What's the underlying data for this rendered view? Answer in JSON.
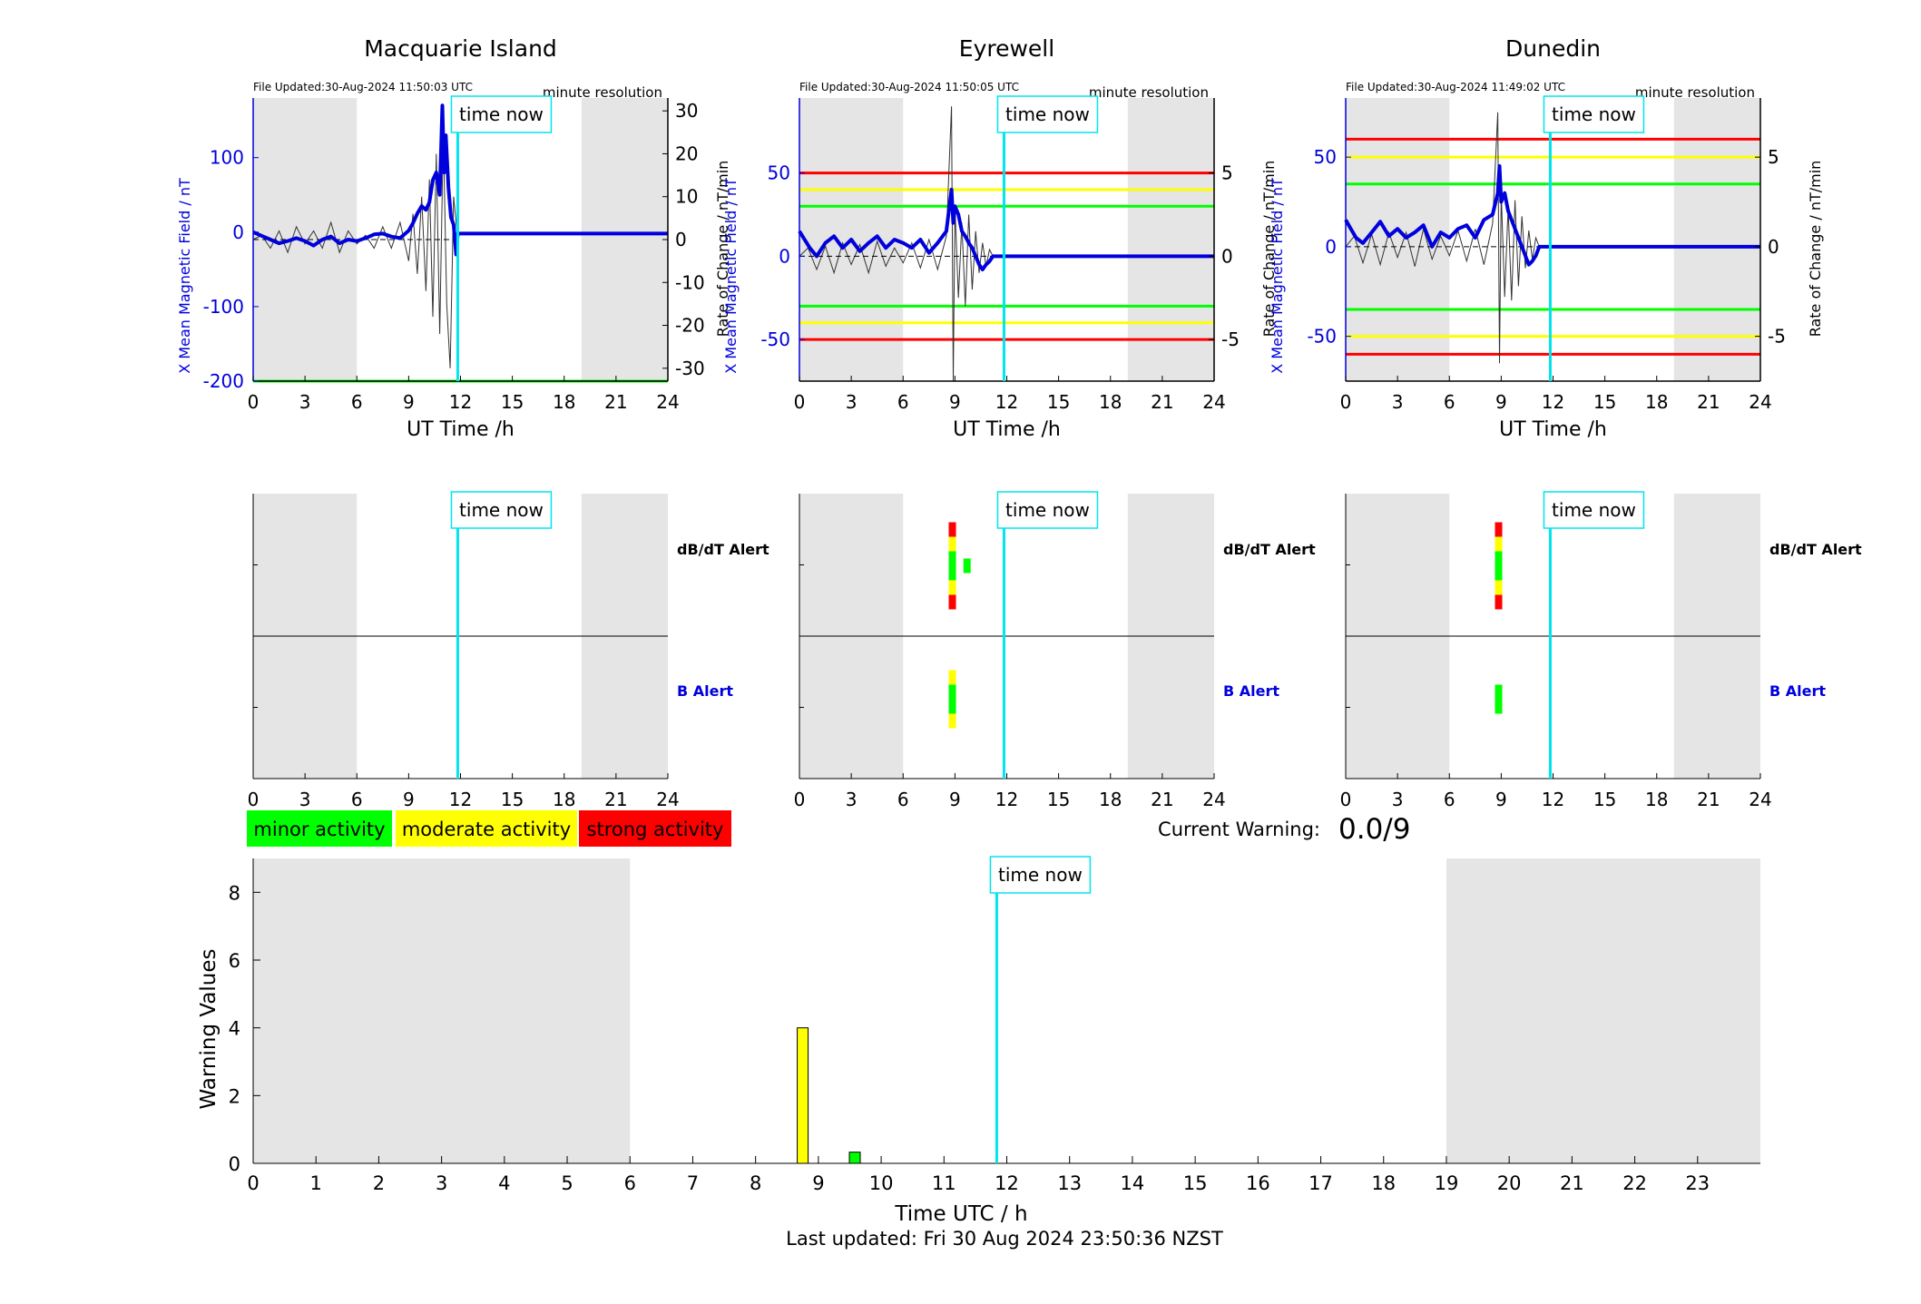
{
  "colors": {
    "x_series": "#0000dd",
    "rate_series": "#333333",
    "minor": "#00ff00",
    "moderate": "#ffff00",
    "strong": "#ff0000",
    "now_line": "#00e5ee",
    "night_shade": "#e5e5e5"
  },
  "time_now_label": "time now",
  "time_now_hours": 11.84,
  "night_hours": [
    [
      0,
      6
    ],
    [
      19,
      24
    ]
  ],
  "stations": [
    {
      "title": "Macquarie Island",
      "file_updated": "File Updated:30-Aug-2024 11:50:03 UTC",
      "resolution": "minute resolution",
      "now_hours": 11.84,
      "ylabel_left": "X Mean Magnetic Field / nT",
      "ylabel_right": "Rate of Change / nT/min",
      "ylim_left": [
        -200,
        180
      ],
      "ylim_right": [
        -33,
        33
      ],
      "yticks_left": [
        "100",
        "0",
        "-100",
        "-200"
      ],
      "yticks_right": [
        "30",
        "20",
        "10",
        "0",
        "-10",
        "-20",
        "-30"
      ],
      "threshold_lines": [
        {
          "value": -200,
          "level": "minor"
        }
      ],
      "x_series": {
        "hours": [
          0,
          0.5,
          1,
          1.5,
          2,
          2.5,
          3,
          3.5,
          4,
          4.5,
          5,
          5.5,
          6,
          6.5,
          7,
          7.5,
          8,
          8.5,
          9,
          9.25,
          9.5,
          9.75,
          10,
          10.2,
          10.4,
          10.6,
          10.8,
          10.95,
          11.05,
          11.15,
          11.3,
          11.45,
          11.6,
          11.75,
          11.84,
          12,
          14,
          16,
          18,
          20,
          22,
          24
        ],
        "values": [
          0,
          -5,
          -10,
          -15,
          -12,
          -8,
          -12,
          -18,
          -10,
          -6,
          -15,
          -10,
          -12,
          -8,
          -3,
          -2,
          -6,
          -8,
          2,
          12,
          25,
          35,
          30,
          40,
          70,
          80,
          50,
          170,
          80,
          130,
          60,
          20,
          10,
          -30,
          -2,
          -2,
          -2,
          -2,
          -2,
          -2,
          -2,
          -2
        ]
      },
      "rate_series": {
        "hours": [
          0,
          0.5,
          1,
          1.5,
          2,
          2.5,
          3,
          3.5,
          4,
          4.5,
          5,
          5.5,
          6,
          6.5,
          7,
          7.5,
          8,
          8.5,
          9,
          9.25,
          9.5,
          9.75,
          10,
          10.2,
          10.4,
          10.6,
          10.8,
          11,
          11.2,
          11.4,
          11.6,
          11.84
        ],
        "values": [
          0,
          1,
          -2,
          2,
          -3,
          3,
          -1,
          2,
          -2,
          4,
          -3,
          2,
          -1,
          1,
          -2,
          3,
          -2,
          4,
          -5,
          6,
          -8,
          10,
          -12,
          14,
          -18,
          20,
          -22,
          25,
          -15,
          -30,
          10,
          0
        ]
      },
      "alerts": {
        "dbdt_label": "dB/dT Alert",
        "b_label": "B Alert",
        "dbdt": [],
        "b": []
      }
    },
    {
      "title": "Eyrewell",
      "file_updated": "File Updated:30-Aug-2024 11:50:05 UTC",
      "resolution": "minute resolution",
      "now_hours": 11.84,
      "ylabel_left": "X Mean Magnetic Field / nT",
      "ylabel_right": "Rate of Change / nT/min",
      "ylim_left": [
        -75,
        95
      ],
      "ylim_right": [
        -7.5,
        9.5
      ],
      "yticks_left": [
        "50",
        "0",
        "-50"
      ],
      "yticks_right": [
        "5",
        "0",
        "-5"
      ],
      "threshold_lines": [
        {
          "value": 50,
          "level": "strong"
        },
        {
          "value": 40,
          "level": "moderate"
        },
        {
          "value": 30,
          "level": "minor"
        },
        {
          "value": -30,
          "level": "minor"
        },
        {
          "value": -40,
          "level": "moderate"
        },
        {
          "value": -50,
          "level": "strong"
        }
      ],
      "x_series": {
        "hours": [
          0,
          0.3,
          0.6,
          1,
          1.5,
          2,
          2.5,
          3,
          3.5,
          4,
          4.5,
          5,
          5.5,
          6,
          6.5,
          7,
          7.5,
          8,
          8.5,
          8.8,
          8.9,
          9,
          9.2,
          9.4,
          9.6,
          9.8,
          10,
          10.2,
          10.4,
          10.6,
          10.8,
          11,
          11.2,
          11.5,
          11.84,
          12,
          14,
          16,
          18,
          20,
          22,
          24
        ],
        "values": [
          15,
          10,
          5,
          0,
          8,
          12,
          5,
          10,
          3,
          8,
          12,
          5,
          10,
          8,
          5,
          10,
          2,
          8,
          15,
          40,
          20,
          30,
          25,
          15,
          12,
          8,
          5,
          0,
          -5,
          -8,
          -5,
          -3,
          0,
          0,
          0,
          0,
          0,
          0,
          0,
          0,
          0,
          0
        ]
      },
      "rate_series": {
        "hours": [
          0,
          0.5,
          1,
          1.5,
          2,
          2.5,
          3,
          3.5,
          4,
          4.5,
          5,
          5.5,
          6,
          6.5,
          7,
          7.5,
          8,
          8.5,
          8.8,
          8.9,
          9,
          9.2,
          9.4,
          9.6,
          9.8,
          10,
          10.2,
          10.4,
          10.6,
          10.8,
          11,
          11.2
        ],
        "values": [
          0,
          0.5,
          -0.8,
          0.6,
          -1,
          0.8,
          -0.5,
          0.7,
          -1,
          0.9,
          -0.6,
          0.5,
          -0.4,
          0.8,
          -0.7,
          1,
          -0.8,
          1.2,
          9,
          -7.5,
          3,
          -2.5,
          2,
          -3,
          2.5,
          -2,
          1.5,
          -1,
          0.8,
          -0.6,
          0.4,
          0
        ]
      },
      "alerts": {
        "dbdt_label": "dB/dT Alert",
        "b_label": "B Alert",
        "dbdt": [
          {
            "hour": 8.85,
            "levels": [
              "strong",
              "moderate",
              "minor",
              "minor",
              "moderate",
              "strong"
            ]
          },
          {
            "hour": 9.7,
            "levels": [
              "minor"
            ]
          }
        ],
        "b": [
          {
            "hour": 8.85,
            "levels": [
              "moderate",
              "minor",
              "minor",
              "moderate"
            ]
          }
        ]
      }
    },
    {
      "title": "Dunedin",
      "file_updated": "File Updated:30-Aug-2024 11:49:02 UTC",
      "resolution": "minute resolution",
      "now_hours": 11.84,
      "ylabel_left": "X Mean Magnetic Field / nT",
      "ylabel_right": "Rate of Change / nT/min",
      "ylim_left": [
        -75,
        83
      ],
      "ylim_right": [
        -7.5,
        8.3
      ],
      "yticks_left": [
        "50",
        "0",
        "-50"
      ],
      "yticks_right": [
        "5",
        "0",
        "-5"
      ],
      "threshold_lines": [
        {
          "value": 60,
          "level": "strong"
        },
        {
          "value": 50,
          "level": "moderate"
        },
        {
          "value": 35,
          "level": "minor"
        },
        {
          "value": -35,
          "level": "minor"
        },
        {
          "value": -50,
          "level": "moderate"
        },
        {
          "value": -60,
          "level": "strong"
        }
      ],
      "x_series": {
        "hours": [
          0,
          0.3,
          0.6,
          1,
          1.5,
          2,
          2.5,
          3,
          3.5,
          4,
          4.5,
          5,
          5.5,
          6,
          6.5,
          7,
          7.5,
          8,
          8.5,
          8.8,
          8.9,
          9,
          9.2,
          9.4,
          9.6,
          9.8,
          10,
          10.2,
          10.4,
          10.6,
          10.8,
          11,
          11.2,
          11.5,
          11.84,
          12,
          14,
          16,
          18,
          20,
          22,
          24
        ],
        "values": [
          15,
          10,
          5,
          2,
          8,
          14,
          6,
          10,
          5,
          8,
          12,
          0,
          8,
          5,
          10,
          12,
          5,
          15,
          18,
          30,
          45,
          25,
          30,
          20,
          15,
          10,
          5,
          0,
          -5,
          -10,
          -8,
          -5,
          0,
          0,
          0,
          0,
          0,
          0,
          0,
          0,
          0,
          0
        ]
      },
      "rate_series": {
        "hours": [
          0,
          0.5,
          1,
          1.5,
          2,
          2.5,
          3,
          3.5,
          4,
          4.5,
          5,
          5.5,
          6,
          6.5,
          7,
          7.5,
          8,
          8.5,
          8.8,
          8.9,
          9,
          9.2,
          9.4,
          9.6,
          9.8,
          10,
          10.2,
          10.4,
          10.6,
          10.8,
          11,
          11.2
        ],
        "values": [
          0,
          0.6,
          -0.9,
          0.7,
          -1,
          0.8,
          -0.6,
          0.8,
          -1.1,
          1,
          -0.7,
          0.6,
          -0.5,
          0.9,
          -0.8,
          1,
          -1,
          1.3,
          7.5,
          -6.5,
          3,
          -2.8,
          2.2,
          -3,
          2.6,
          -2.2,
          1.7,
          -1.2,
          0.9,
          -0.7,
          0.5,
          0
        ]
      },
      "alerts": {
        "dbdt_label": "dB/dT Alert",
        "b_label": "B Alert",
        "dbdt": [
          {
            "hour": 8.85,
            "levels": [
              "strong",
              "moderate",
              "minor",
              "minor",
              "moderate",
              "strong"
            ]
          }
        ],
        "b": [
          {
            "hour": 8.85,
            "levels": [
              "minor",
              "minor"
            ]
          }
        ]
      }
    }
  ],
  "station_xlabel": "UT Time /h",
  "station_xticks": [
    "0",
    "3",
    "6",
    "9",
    "12",
    "15",
    "18",
    "21",
    "24"
  ],
  "legend": [
    {
      "label": "minor activity",
      "level": "minor"
    },
    {
      "label": "moderate activity",
      "level": "moderate"
    },
    {
      "label": "strong activity",
      "level": "strong"
    }
  ],
  "current_warning": {
    "label": "Current Warning:",
    "value": "0.0/9"
  },
  "chart_data": {
    "type": "bar",
    "xlabel": "Time UTC / h",
    "ylabel": "Warning Values",
    "xlim": [
      0,
      24
    ],
    "ylim": [
      0,
      9
    ],
    "xticks": [
      "0",
      "1",
      "2",
      "3",
      "4",
      "5",
      "6",
      "7",
      "8",
      "9",
      "10",
      "11",
      "12",
      "13",
      "14",
      "15",
      "16",
      "17",
      "18",
      "19",
      "20",
      "21",
      "22",
      "23"
    ],
    "yticks": [
      "0",
      "2",
      "4",
      "6",
      "8"
    ],
    "bars": [
      {
        "hour": 8.75,
        "value": 4,
        "level": "moderate"
      },
      {
        "hour": 9.58,
        "value": 0.33,
        "level": "minor"
      }
    ],
    "night_hours": [
      [
        0,
        6
      ],
      [
        19,
        24
      ]
    ],
    "time_now_hours": 11.84
  },
  "footer": "Last updated: Fri 30 Aug 2024 23:50:36 NZST"
}
